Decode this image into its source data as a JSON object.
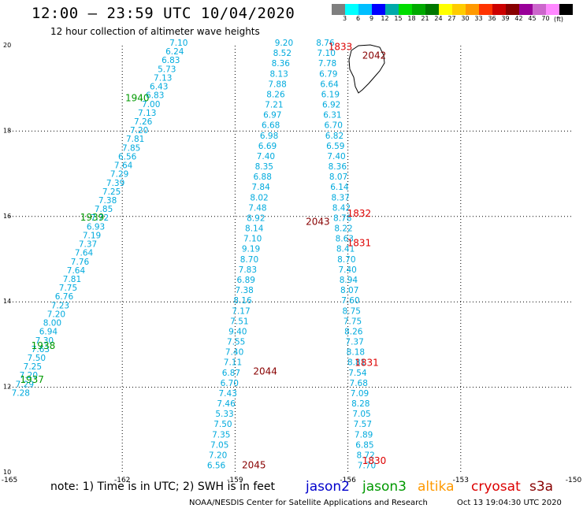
{
  "title": "12:00 – 23:59 UTC 10/04/2020",
  "subtitle": "12 hour collection of altimeter wave heights",
  "legend": {
    "colors": [
      "#7f7f7f",
      "#00ffff",
      "#00bfff",
      "#0000ff",
      "#00aaaa",
      "#00dd00",
      "#00aa00",
      "#007700",
      "#ffff00",
      "#ffcc00",
      "#ff9900",
      "#ff3300",
      "#cc0000",
      "#880000",
      "#990099",
      "#cc66cc",
      "#ff88ff",
      "#000000"
    ],
    "labels": [
      "3",
      "6",
      "9",
      "12",
      "15",
      "18",
      "21",
      "24",
      "27",
      "30",
      "33",
      "36",
      "39",
      "42",
      "45",
      "70"
    ],
    "unit": "(ft)"
  },
  "axes": {
    "x_ticks": [
      "-165",
      "-162",
      "-159",
      "-156",
      "-153",
      "-150"
    ],
    "y_ticks": [
      "20",
      "18",
      "16",
      "14",
      "12",
      "10"
    ]
  },
  "note": "note:  1) Time is in UTC;  2) SWH is in feet",
  "satellites": [
    {
      "name": "jason2",
      "color": "#0000cc"
    },
    {
      "name": "jason3",
      "color": "#009900"
    },
    {
      "name": "altika",
      "color": "#ff9900"
    },
    {
      "name": "cryosat",
      "color": "#dd0000"
    },
    {
      "name": "s3a",
      "color": "#880000"
    }
  ],
  "footer_left": "NOAA/NESDIS Center for Satellite Applications and Research",
  "footer_right": "Oct 13 19:04:30 UTC 2020",
  "map_data": {
    "lon_range": [
      -165,
      -150
    ],
    "lat_range": [
      10,
      20
    ],
    "tracks": [
      {
        "satellite": "jason3",
        "start": [
          -160.5,
          20.0
        ],
        "end": [
          -164.7,
          11.8
        ],
        "color": "#00aadd",
        "values": [
          "7.10",
          "6.24",
          "6.83",
          "5.73",
          "7.13",
          "6.43",
          "6.83",
          "7.00",
          "7.13",
          "7.26",
          "7.20",
          "7.81",
          "7.85",
          "6.56",
          "7.64",
          "7.29",
          "7.39",
          "7.25",
          "7.38",
          "7.85",
          "7.72",
          "6.93",
          "7.19",
          "7.37",
          "7.64",
          "7.76",
          "7.64",
          "7.81",
          "7.75",
          "6.76",
          "7.23",
          "7.20",
          "8.00",
          "6.94",
          "7.30",
          "7.63",
          "7.50",
          "7.25",
          "7.20",
          "7.29",
          "7.28"
        ],
        "times": [
          {
            "label": "1940",
            "lat": 18.7,
            "lon": -161.6
          },
          {
            "label": "1939",
            "lat": 15.9,
            "lon": -162.8
          },
          {
            "label": "1938",
            "lat": 12.9,
            "lon": -164.1
          },
          {
            "label": "1937",
            "lat": 12.1,
            "lon": -164.4
          }
        ],
        "time_color": "#009900"
      },
      {
        "satellite": "s3a",
        "start": [
          -157.7,
          20.0
        ],
        "end": [
          -159.5,
          10.1
        ],
        "color": "#00aadd",
        "values": [
          "9.20",
          "8.52",
          "8.36",
          "8.13",
          "7.88",
          "8.26",
          "7.21",
          "6.97",
          "6.68",
          "6.98",
          "6.69",
          "7.40",
          "8.35",
          "6.88",
          "7.84",
          "8.02",
          "7.48",
          "8.92",
          "8.14",
          "7.10",
          "9.19",
          "8.70",
          "7.83",
          "6.89",
          "7.38",
          "8.16",
          "7.17",
          "7.51",
          "9.40",
          "7.55",
          "7.40",
          "7.11",
          "6.87",
          "6.70",
          "7.43",
          "7.46",
          "5.33",
          "7.50",
          "7.35",
          "7.05",
          "7.20",
          "6.56"
        ],
        "times": [
          {
            "label": "2045",
            "lat": 10.1,
            "lon": -158.5
          },
          {
            "label": "2044",
            "lat": 12.3,
            "lon": -158.2
          },
          {
            "label": "2043",
            "lat": 15.8,
            "lon": -156.8
          },
          {
            "label": "2042",
            "lat": 19.7,
            "lon": -155.3
          }
        ],
        "time_color": "#880000"
      },
      {
        "satellite": "cryosat",
        "start": [
          -156.6,
          20.0
        ],
        "end": [
          -155.5,
          10.1
        ],
        "color": "#00aadd",
        "values": [
          "8.76",
          "7.10",
          "7.78",
          "6.79",
          "6.64",
          "6.19",
          "6.92",
          "6.31",
          "6.70",
          "6.82",
          "6.59",
          "7.40",
          "8.36",
          "8.07",
          "6.14",
          "8.37",
          "8.42",
          "8.78",
          "8.22",
          "8.63",
          "8.41",
          "8.70",
          "7.40",
          "8.94",
          "8.07",
          "7.60",
          "8.75",
          "7.75",
          "8.26",
          "7.37",
          "8.18",
          "8.81",
          "7.54",
          "7.68",
          "7.09",
          "8.28",
          "7.05",
          "7.57",
          "7.89",
          "6.85",
          "8.72",
          "7.70"
        ],
        "times": [
          {
            "label": "1833",
            "lat": 19.9,
            "lon": -156.2
          },
          {
            "label": "1832",
            "lat": 16.0,
            "lon": -155.7
          },
          {
            "label": "1831",
            "lat": 15.3,
            "lon": -155.7
          },
          {
            "label": "1831",
            "lat": 12.5,
            "lon": -155.5
          },
          {
            "label": "1830",
            "lat": 10.2,
            "lon": -155.3
          }
        ],
        "time_color": "#dd0000"
      }
    ]
  }
}
